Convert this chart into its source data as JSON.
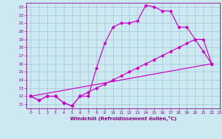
{
  "xlabel": "Windchill (Refroidissement éolien,°C)",
  "bg_color": "#cce8f0",
  "line_color": "#cc00cc",
  "grid_color": "#99bbcc",
  "line1_x": [
    0,
    1,
    2,
    3,
    4,
    5,
    6,
    7,
    8,
    9,
    10,
    11,
    12,
    13,
    14,
    15,
    16,
    17,
    18,
    19,
    20,
    21,
    22
  ],
  "line1_y": [
    12,
    11.5,
    12,
    12,
    11.2,
    10.8,
    12,
    12,
    15.5,
    18.5,
    20.5,
    21,
    21,
    21.3,
    23.2,
    23,
    22.5,
    22.5,
    20.5,
    20.5,
    19,
    17.5,
    16
  ],
  "line2_x": [
    0,
    1,
    2,
    3,
    4,
    5,
    6,
    7,
    8,
    9,
    10,
    11,
    12,
    13,
    14,
    15,
    16,
    17,
    18,
    19,
    20,
    21,
    22
  ],
  "line2_y": [
    12,
    11.5,
    12,
    12,
    11.2,
    10.8,
    12,
    12.5,
    13.0,
    13.5,
    14.0,
    14.5,
    15.0,
    15.5,
    16.0,
    16.5,
    17.0,
    17.5,
    18.0,
    18.5,
    19.0,
    19.0,
    16.0
  ],
  "line3_x": [
    0,
    22
  ],
  "line3_y": [
    12,
    16
  ],
  "xlim": [
    -0.5,
    23
  ],
  "ylim": [
    10.5,
    23.5
  ],
  "xticks": [
    0,
    1,
    2,
    3,
    4,
    5,
    6,
    7,
    8,
    9,
    10,
    11,
    12,
    13,
    14,
    15,
    16,
    17,
    18,
    19,
    20,
    21,
    22,
    23
  ],
  "yticks": [
    11,
    12,
    13,
    14,
    15,
    16,
    17,
    18,
    19,
    20,
    21,
    22,
    23
  ],
  "markersize": 2.5,
  "linewidth": 0.9
}
